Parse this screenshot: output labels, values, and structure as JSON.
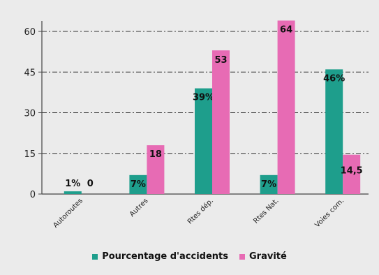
{
  "chart_data": {
    "type": "bar",
    "categories": [
      "Autoroutes",
      "Autres",
      "Rtes dép.",
      "Rtes Nat.",
      "Voies com."
    ],
    "series": [
      {
        "name": "Pourcentage d'accidents",
        "values": [
          1,
          7,
          39,
          7,
          46
        ],
        "labels": [
          "1%",
          "7%",
          "39%",
          "7%",
          "46%"
        ],
        "color": "#1e9e8c"
      },
      {
        "name": "Gravité",
        "values": [
          0,
          18,
          53,
          64,
          14.5
        ],
        "labels": [
          "0",
          "18",
          "53",
          "64",
          "14,5"
        ],
        "color": "#e76bb4"
      }
    ],
    "yticks": [
      0,
      15,
      30,
      45,
      60
    ],
    "ylim": [
      0,
      64
    ],
    "grid": true,
    "legend_position": "bottom"
  }
}
